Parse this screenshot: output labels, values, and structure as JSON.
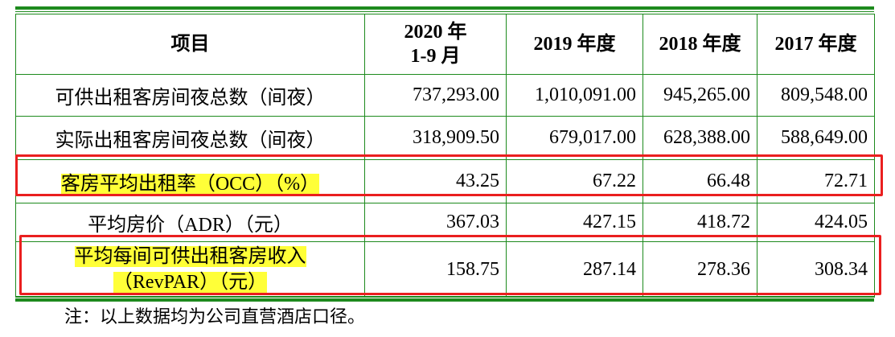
{
  "table": {
    "headers": {
      "item": "项目",
      "col_2020_line1": "2020 年",
      "col_2020_line2": "1-9 月",
      "col_2019": "2019 年度",
      "col_2018": "2018 年度",
      "col_2017": "2017 年度"
    },
    "rows": [
      {
        "label": "可供出租客房间夜总数（间夜）",
        "values": [
          "737,293.00",
          "1,010,091.00",
          "945,265.00",
          "809,548.00"
        ]
      },
      {
        "label": "实际出租客房间夜总数（间夜）",
        "values": [
          "318,909.50",
          "679,017.00",
          "628,388.00",
          "588,649.00"
        ]
      },
      {
        "label": "客房平均出租率（OCC）（%）",
        "values": [
          "43.25",
          "67.22",
          "66.48",
          "72.71"
        ]
      },
      {
        "label": "平均房价（ADR）（元）",
        "values": [
          "367.03",
          "427.15",
          "418.72",
          "424.05"
        ]
      },
      {
        "label_line1": "平均每间可供出租客房收入",
        "label_line2": "（RevPAR）（元）",
        "values": [
          "158.75",
          "287.14",
          "278.36",
          "308.34"
        ]
      }
    ]
  },
  "note": "注：以上数据均为公司直营酒店口径。",
  "colors": {
    "rule_green": "#1d8a1d",
    "highlight_yellow": "#ffff38",
    "annotation_red": "#ea1f1f"
  }
}
